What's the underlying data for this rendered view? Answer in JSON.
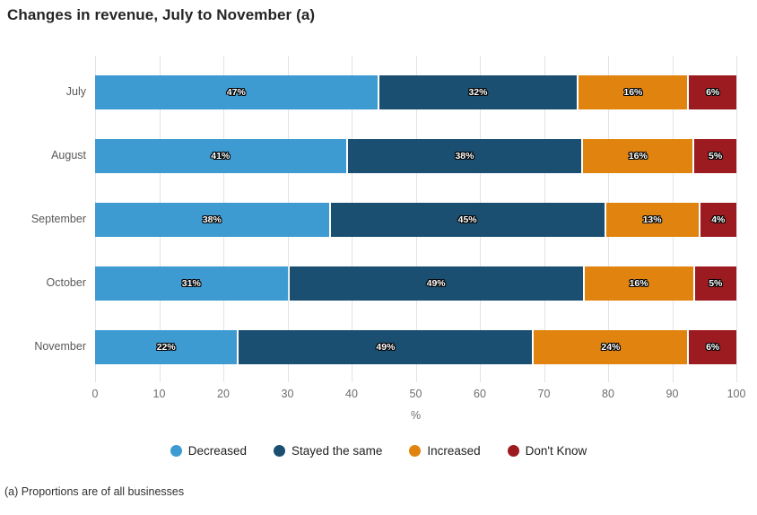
{
  "title": "Changes in revenue, July to November (a)",
  "footnote": "(a) Proportions are of all businesses",
  "colors": {
    "decreased": "#3E9BD2",
    "stayed_the_same": "#1A4F72",
    "increased": "#E0830F",
    "dont_know": "#9C1B20",
    "gridline": "#E1E3E6",
    "axis_text": "#6E6E6E",
    "category_text": "#595959",
    "title_text": "#252525",
    "legend_text": "#1F1F1F"
  },
  "chart_data": {
    "type": "bar",
    "orientation": "horizontal",
    "stacked": true,
    "title": "Changes in revenue, July to November (a)",
    "categories": [
      "July",
      "August",
      "September",
      "October",
      "November"
    ],
    "series": [
      {
        "name": "Decreased",
        "color": "#3E9BD2",
        "values": [
          47,
          41,
          38,
          31,
          22
        ]
      },
      {
        "name": "Stayed the same",
        "color": "#1A4F72",
        "values": [
          32,
          38,
          45,
          49,
          49
        ]
      },
      {
        "name": "Increased",
        "color": "#E0830F",
        "values": [
          16,
          16,
          13,
          16,
          24
        ]
      },
      {
        "name": "Don't Know",
        "color": "#9C1B20",
        "values": [
          6,
          5,
          4,
          5,
          6
        ]
      }
    ],
    "data_label_format": "{value}%",
    "xlabel": "%",
    "ylabel": "",
    "xlim": [
      0,
      100
    ],
    "xticks": [
      0,
      10,
      20,
      30,
      40,
      50,
      60,
      70,
      80,
      90,
      100
    ],
    "grid": "vertical",
    "legend_position": "bottom"
  }
}
